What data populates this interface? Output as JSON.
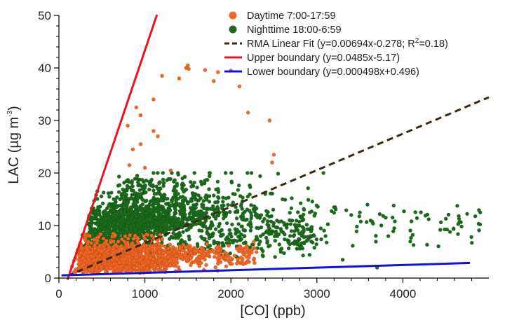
{
  "chart_data": {
    "type": "scatter",
    "xlabel": "[CO] (ppb)",
    "ylabel_main": "LAC (µg m",
    "ylabel_exp": "-3",
    "ylabel_close": ")",
    "xlim": [
      0,
      5000
    ],
    "ylim": [
      0,
      50
    ],
    "x_ticks": [
      0,
      1000,
      2000,
      3000,
      4000
    ],
    "y_ticks": [
      0,
      10,
      20,
      30,
      40,
      50
    ],
    "x_tick_labels": [
      "0",
      "1000",
      "2000",
      "3000",
      "4000"
    ],
    "y_tick_labels": [
      "0",
      "10",
      "20",
      "30",
      "40",
      "50"
    ],
    "grid": false,
    "legend_position": "top-right",
    "series": [
      {
        "name": "Daytime 7:00-17:59",
        "kind": "points",
        "color": "#f26522",
        "generated_count": 1400,
        "values_note": "bulk: x 150-2300 ppb, y 0.5-8 µg m-3",
        "outliers": [
          [
            1500,
            40.5
          ],
          [
            1480,
            40
          ],
          [
            1510,
            39.8
          ],
          [
            1700,
            39.6
          ],
          [
            1850,
            39.2
          ],
          [
            2000,
            39.5
          ],
          [
            1200,
            38.5
          ],
          [
            1400,
            38
          ],
          [
            1800,
            37.5
          ],
          [
            2100,
            36.5
          ],
          [
            1100,
            34
          ],
          [
            900,
            32.5
          ],
          [
            950,
            31
          ],
          [
            2200,
            31.5
          ],
          [
            2450,
            30
          ],
          [
            800,
            29
          ],
          [
            1100,
            28
          ],
          [
            1150,
            27
          ],
          [
            950,
            25.5
          ],
          [
            860,
            24.5
          ],
          [
            2500,
            23.5
          ],
          [
            2480,
            22
          ],
          [
            820,
            21.5
          ],
          [
            1000,
            21
          ],
          [
            1300,
            20.5
          ]
        ]
      },
      {
        "name": "Nighttime 18:00-6:59",
        "kind": "points",
        "color": "#1a6b1a",
        "generated_count": 2000,
        "values_note": "bulk: x 200-3000 ppb, y 2-20 µg m-3; tail to 4900 ppb",
        "outliers": [
          [
            3200,
            13.5
          ],
          [
            3500,
            12.5
          ],
          [
            3800,
            11.5
          ],
          [
            4100,
            10.8
          ],
          [
            4300,
            11.2
          ],
          [
            4500,
            11.3
          ],
          [
            4650,
            11.8
          ],
          [
            4900,
            12.5
          ],
          [
            3700,
            2
          ],
          [
            3300,
            3.5
          ],
          [
            3900,
            9.5
          ],
          [
            2600,
            15
          ],
          [
            2400,
            16
          ],
          [
            3100,
            8
          ],
          [
            3400,
            12
          ]
        ]
      },
      {
        "name": "RMA Linear Fit (y=0.00694x-0.278; R",
        "name_sup": "2",
        "name_tail": "=0.18)",
        "kind": "line",
        "color": "#3a2a10",
        "dashed": true,
        "slope": 0.00694,
        "intercept": -0.278,
        "x_range": [
          100,
          5000
        ]
      },
      {
        "name": "Upper boundary (y=0.0485x-5.17)",
        "kind": "line",
        "color": "#e8141b",
        "dashed": false,
        "slope": 0.0485,
        "intercept": -5.17,
        "x_range": [
          100,
          1140
        ]
      },
      {
        "name": "Lower boundary (y=0.000498x+0.496)",
        "kind": "line",
        "color": "#1010e0",
        "dashed": false,
        "slope": 0.000498,
        "intercept": 0.496,
        "x_range": [
          30,
          4780
        ]
      }
    ]
  }
}
